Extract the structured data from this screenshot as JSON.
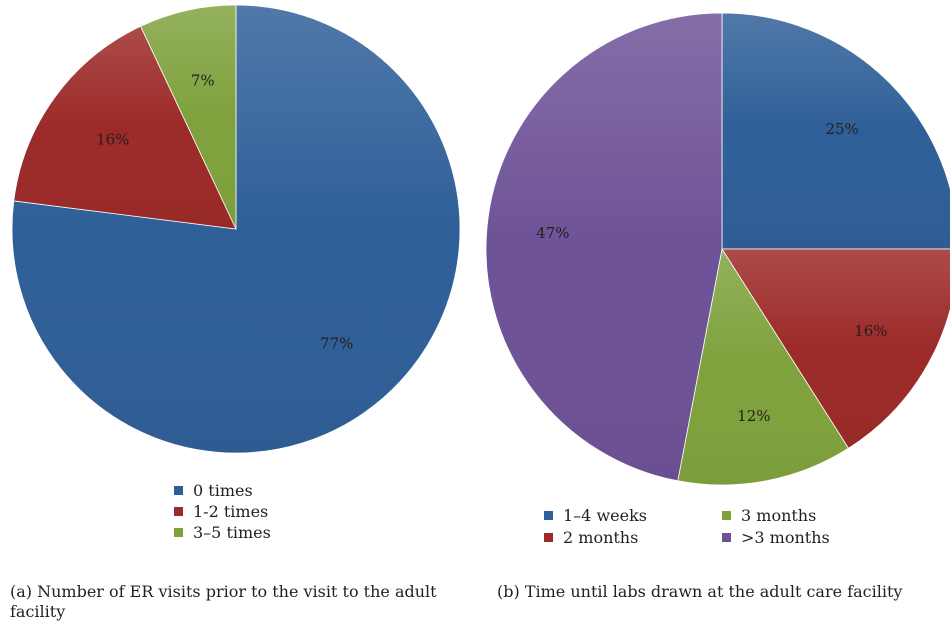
{
  "chart_data": [
    {
      "type": "pie",
      "title": "",
      "slices": [
        {
          "label": "0 times",
          "value": 77,
          "text": "77%",
          "color": "#2f5f98"
        },
        {
          "label": "1-2 times",
          "value": 16,
          "text": "16%",
          "color": "#9c2a28"
        },
        {
          "label": "3–5 times",
          "value": 7,
          "text": "7%",
          "color": "#7fa23d"
        }
      ],
      "start_angle_deg": 0,
      "direction": "clockwise",
      "legend": {
        "position": "bottom",
        "columns": 1
      }
    },
    {
      "type": "pie",
      "title": "",
      "slices": [
        {
          "label": "1–4 weeks",
          "value": 25,
          "text": "25%",
          "color": "#2f5f98"
        },
        {
          "label": "2 months",
          "value": 16,
          "text": "16%",
          "color": "#9c2a28"
        },
        {
          "label": "3 months",
          "value": 12,
          "text": "12%",
          "color": "#7fa23d"
        },
        {
          "label": ">3 months",
          "value": 47,
          "text": "47%",
          "color": "#6e5297"
        }
      ],
      "start_angle_deg": 0,
      "direction": "clockwise",
      "legend": {
        "position": "bottom",
        "columns": 2
      }
    }
  ],
  "captions": {
    "a": "(a)  Number of ER visits prior to the visit to the adult facility",
    "b": "(b)  Time until labs drawn at the adult care facility"
  }
}
